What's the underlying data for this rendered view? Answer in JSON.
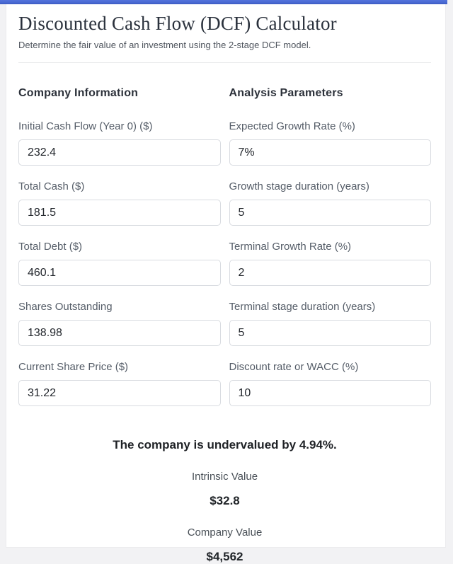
{
  "header": {
    "title": "Discounted Cash Flow (DCF) Calculator",
    "subtitle": "Determine the fair value of an investment using the 2-stage DCF model."
  },
  "company_info": {
    "heading": "Company Information",
    "fields": [
      {
        "label": "Initial Cash Flow (Year 0) ($)",
        "value": "232.4"
      },
      {
        "label": "Total Cash ($)",
        "value": "181.5"
      },
      {
        "label": "Total Debt ($)",
        "value": "460.1"
      },
      {
        "label": "Shares Outstanding",
        "value": "138.98"
      },
      {
        "label": "Current Share Price ($)",
        "value": "31.22"
      }
    ]
  },
  "analysis_params": {
    "heading": "Analysis Parameters",
    "fields": [
      {
        "label": "Expected Growth Rate (%)",
        "value": "7%"
      },
      {
        "label": "Growth stage duration (years)",
        "value": "5"
      },
      {
        "label": "Terminal Growth Rate (%)",
        "value": "2"
      },
      {
        "label": "Terminal stage duration (years)",
        "value": "5"
      },
      {
        "label": "Discount rate or WACC (%)",
        "value": "10"
      }
    ]
  },
  "results": {
    "message": "The company is undervalued by 4.94%.",
    "stats": [
      {
        "label": "Intrinsic Value",
        "value": "$32.8"
      },
      {
        "label": "Company Value",
        "value": "$4,562"
      }
    ]
  },
  "theme": {
    "accent_bar_color": "#4767d2",
    "page_background": "#f2f2f4",
    "card_background": "#ffffff",
    "input_border_color": "#d8dbe0"
  }
}
